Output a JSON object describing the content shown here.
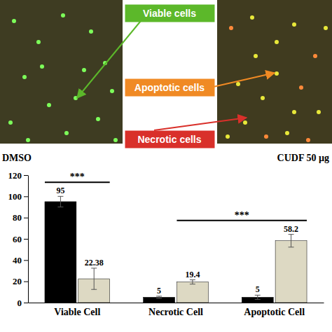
{
  "chart_data": {
    "type": "bar",
    "categories": [
      "Viable Cell",
      "Necrotic Cell",
      "Apoptotic Cell"
    ],
    "series": [
      {
        "color": "#000000",
        "values": [
          95,
          5,
          5
        ],
        "errors": [
          5,
          1,
          2
        ]
      },
      {
        "color": "#ddd9c3",
        "values": [
          22.38,
          19.4,
          58.2
        ],
        "errors": [
          10,
          2,
          6
        ]
      }
    ],
    "ylim": [
      0,
      120
    ],
    "yticks": [
      0,
      20,
      40,
      60,
      80,
      100,
      120
    ],
    "data_labels": true,
    "significance": [
      {
        "label": "***",
        "from": {
          "category": "Viable Cell",
          "series": 0
        },
        "to": {
          "category": "Viable Cell",
          "series": 1
        }
      },
      {
        "label": "***",
        "from": {
          "category": "Necrotic Cell",
          "series": 1
        },
        "to": {
          "category": "Apoptotic Cell",
          "series": 1
        }
      }
    ]
  },
  "figure": {
    "image_captions": [
      "DMSO",
      "CUDF 50 µg"
    ],
    "callouts": [
      {
        "text": "Viable cells",
        "color": "#5cb82a"
      },
      {
        "text": "Apoptotic cells",
        "color": "#f08a24"
      },
      {
        "text": "Necrotic cells",
        "color": "#d9302a"
      }
    ]
  }
}
